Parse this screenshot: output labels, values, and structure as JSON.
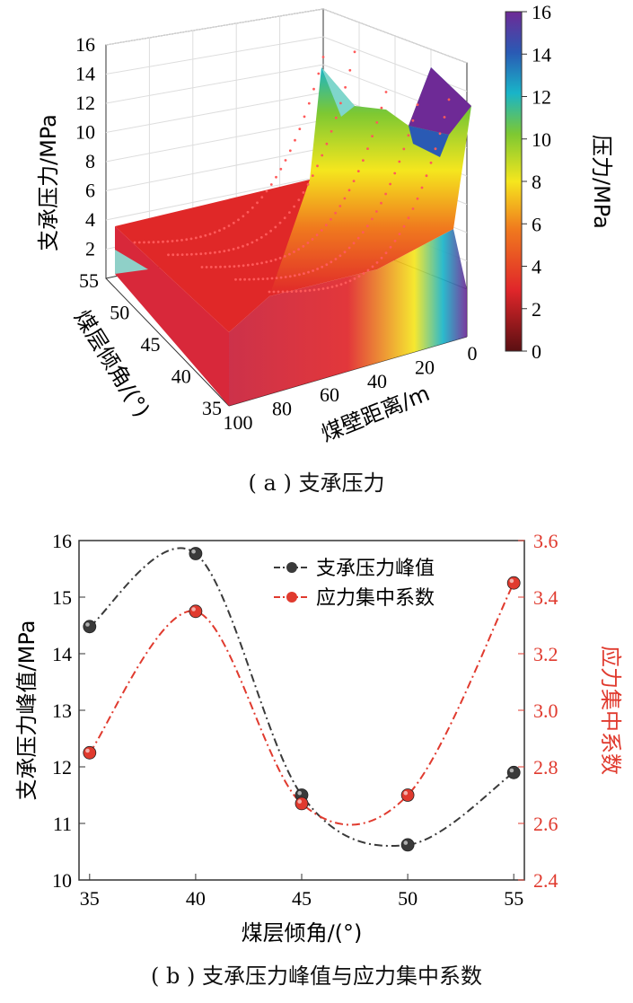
{
  "figure_a": {
    "caption": "( a ) 支承压力",
    "colorbar_label": "压力/MPa",
    "colorbar_ticks": [
      "0",
      "2",
      "4",
      "6",
      "8",
      "10",
      "12",
      "14",
      "16"
    ],
    "colors": {
      "stop0": "#5a0f12",
      "stop1": "#e0262a",
      "stop2": "#f07a1e",
      "stop3": "#f5e61e",
      "stop4": "#7dc832",
      "stop5": "#19b4c8",
      "stop6": "#2a5ab4",
      "stop7": "#6e2a96"
    },
    "chart_data": {
      "type": "surface",
      "xlabel": "煤壁距离/m",
      "ylabel": "煤层倾角/(°)",
      "zlabel": "支承压力/MPa",
      "x_ticks": [
        "0",
        "20",
        "40",
        "60",
        "80",
        "100"
      ],
      "y_ticks": [
        "35",
        "40",
        "45",
        "50",
        "55"
      ],
      "z_ticks": [
        "2",
        "4",
        "6",
        "8",
        "10",
        "12",
        "14",
        "16"
      ],
      "zlim": [
        0,
        16
      ],
      "peak_values": [
        {
          "angle": 35,
          "peak": 14.5
        },
        {
          "angle": 40,
          "peak": 15.8
        },
        {
          "angle": 45,
          "peak": 11.5
        },
        {
          "angle": 50,
          "peak": 10.6
        },
        {
          "angle": 55,
          "peak": 11.9
        }
      ],
      "far_field_value": 3.5
    }
  },
  "figure_b": {
    "caption": "( b ) 支承压力峰值与应力集中系数",
    "colors": {
      "series1": "#3a3a3a",
      "series2": "#e03a2e"
    },
    "chart_data": {
      "type": "line",
      "xlabel": "煤层倾角/(°)",
      "ylabel_left": "支承压力峰值/MPa",
      "ylabel_right": "应力集中系数",
      "x": [
        35,
        40,
        45,
        50,
        55
      ],
      "xlim": [
        34.5,
        55.5
      ],
      "x_ticks": [
        "35",
        "40",
        "45",
        "50",
        "55"
      ],
      "ylim_left": [
        10,
        16
      ],
      "yticks_left": [
        "10",
        "11",
        "12",
        "13",
        "14",
        "15",
        "16"
      ],
      "ylim_right": [
        2.4,
        3.6
      ],
      "yticks_right": [
        "2.4",
        "2.6",
        "2.8",
        "3.0",
        "3.2",
        "3.4",
        "3.6"
      ],
      "legend_position": "top-right",
      "series": [
        {
          "name": "支承压力峰值",
          "axis": "left",
          "values": [
            14.48,
            15.77,
            11.5,
            10.62,
            11.9
          ]
        },
        {
          "name": "应力集中系数",
          "axis": "right",
          "values": [
            2.85,
            3.35,
            2.67,
            2.7,
            3.45
          ]
        }
      ]
    }
  }
}
